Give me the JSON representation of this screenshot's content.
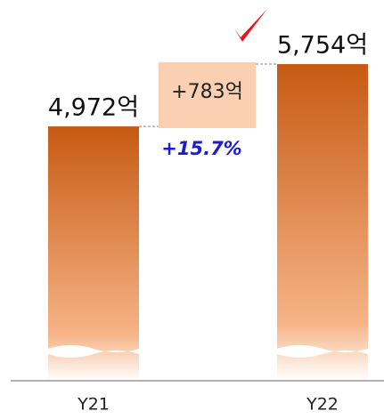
{
  "chart_data": {
    "type": "bar",
    "categories": [
      "Y21",
      "Y22"
    ],
    "values": [
      4972,
      5754
    ],
    "value_labels": [
      "4,972억",
      "5,754억"
    ],
    "ylim": [
      1780,
      6000
    ],
    "annotations": [
      "+783억",
      "+15.7%"
    ],
    "colors": {
      "bar_top": "#c65a13",
      "bar_bottom": "#f6b487",
      "change_box": "#fbd0b2",
      "percent": "#1b1bd0"
    }
  }
}
